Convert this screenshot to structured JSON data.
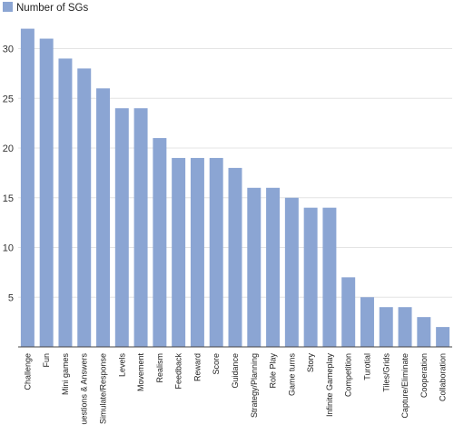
{
  "chart_data": {
    "type": "bar",
    "title": "",
    "xlabel": "",
    "ylabel": "",
    "legend": {
      "position": "top-left",
      "entries": [
        "Number of SGs"
      ]
    },
    "series": [
      {
        "name": "Number of SGs",
        "color": "#8ba5d3",
        "values": [
          32,
          31,
          29,
          28,
          26,
          24,
          24,
          21,
          19,
          19,
          19,
          18,
          16,
          16,
          15,
          14,
          14,
          7,
          5,
          4,
          4,
          3,
          2
        ]
      }
    ],
    "categories": [
      "Challenge",
      "Fun",
      "Mini games",
      "Questions & Answers",
      "Simulate/Response",
      "Levels",
      "Movement",
      "Realism",
      "Feedback",
      "Reward",
      "Score",
      "Guidance",
      "Strategy/Planning",
      "Role Play",
      "Game turns",
      "Story",
      "Infinite Gameplay",
      "Competition",
      "Turotial",
      "Tiles/Grids",
      "Capture/Eliminate",
      "Cooperation",
      "Collaboration"
    ],
    "ylim": [
      0,
      32
    ],
    "yticks": [
      5,
      10,
      15,
      20,
      25,
      30
    ],
    "grid": true
  }
}
